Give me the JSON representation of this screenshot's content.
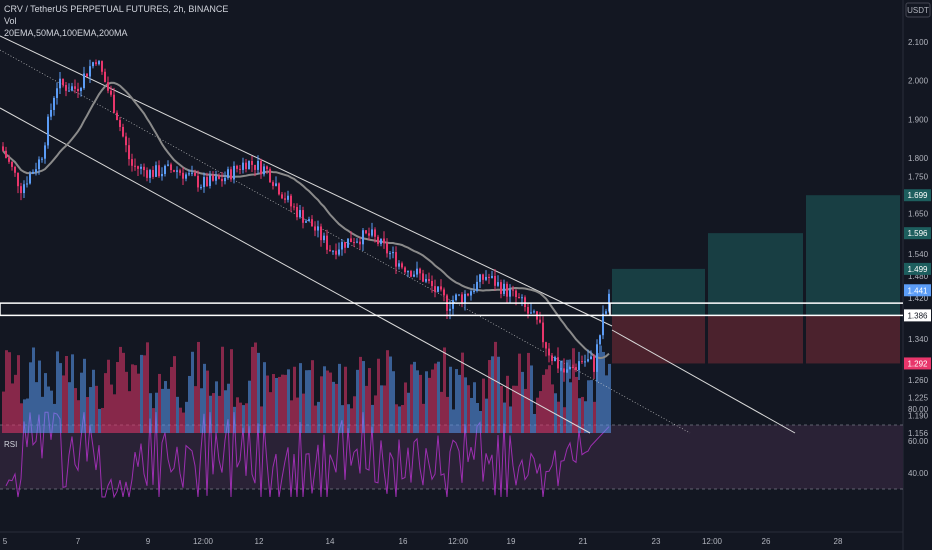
{
  "header": {
    "title": "CRV / TetherUS PERPETUAL FUTURES, 2h, BINANCE",
    "vol_label": "Vol",
    "ma_label": "20EMA,50MA,100EMA,200MA",
    "rsi_label": "RSI",
    "currency": "USDT"
  },
  "colors": {
    "background": "#131722",
    "candle_up": "#5b9cf6",
    "candle_down": "#e8366b",
    "ma_line": "#8a8a8a",
    "channel": "#d9d9d9",
    "horizontal_lines": "#ffffff",
    "target_zone": "#1d5e5e",
    "stop_zone": "#7a2b36",
    "rsi_line": "#9c2fb0",
    "rsi_band": "#2a2236"
  },
  "chart_data": {
    "type": "candlestick",
    "price_axis_ticks": [
      "2.100",
      "2.000",
      "1.900",
      "1.800",
      "1.750",
      "1.650",
      "1.540",
      "1.480",
      "1.420",
      "1.340",
      "1.260",
      "1.225",
      "1.190",
      "1.156"
    ],
    "price_labels": [
      {
        "value": "1.699",
        "kind": "target"
      },
      {
        "value": "1.596",
        "kind": "target"
      },
      {
        "value": "1.499",
        "kind": "target"
      },
      {
        "value": "1.441",
        "kind": "current"
      },
      {
        "value": "1.386",
        "kind": "level"
      },
      {
        "value": "1.292",
        "kind": "stop"
      }
    ],
    "time_axis_ticks": [
      "5",
      "7",
      "9",
      "12:00",
      "12",
      "14",
      "16",
      "12:00",
      "19",
      "21",
      "23",
      "12:00",
      "26",
      "28"
    ],
    "rsi_axis_ticks": [
      "80.00",
      "60.00",
      "40.00"
    ],
    "horizontal_levels": [
      1.41,
      1.386
    ],
    "trade_zones": {
      "entry": 1.386,
      "targets": [
        1.499,
        1.596,
        1.699
      ],
      "stop": 1.292
    }
  }
}
